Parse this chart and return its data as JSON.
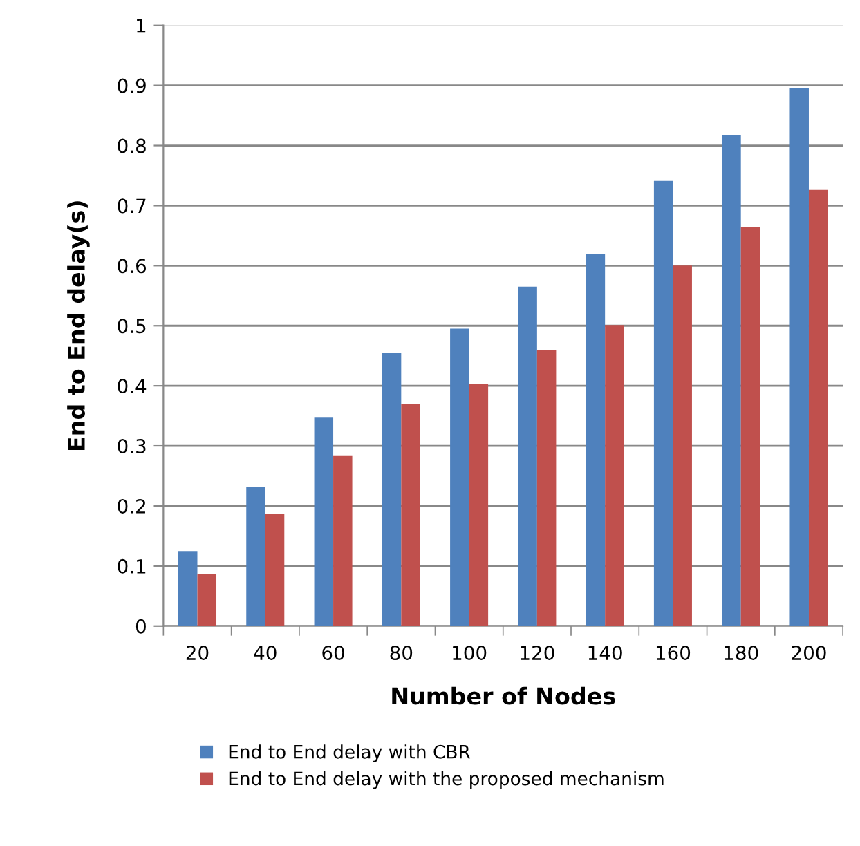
{
  "chart_data": {
    "type": "bar",
    "xlabel": "Number of Nodes",
    "ylabel": "End to End delay(s)",
    "categories": [
      "20",
      "40",
      "60",
      "80",
      "100",
      "120",
      "140",
      "160",
      "180",
      "200"
    ],
    "series": [
      {
        "name": "End to End delay with CBR",
        "color": "#4f81bd",
        "values": [
          0.125,
          0.231,
          0.347,
          0.455,
          0.495,
          0.565,
          0.62,
          0.741,
          0.818,
          0.895
        ]
      },
      {
        "name": "End to End delay with the proposed mechanism",
        "color": "#c0504d",
        "values": [
          0.087,
          0.187,
          0.283,
          0.37,
          0.403,
          0.459,
          0.501,
          0.6,
          0.664,
          0.726
        ]
      }
    ],
    "ylim": [
      0,
      1
    ],
    "yticks": [
      0,
      0.1,
      0.2,
      0.3,
      0.4,
      0.5,
      0.6,
      0.7,
      0.8,
      0.9,
      1
    ],
    "grid": "y",
    "legend": "bottom"
  }
}
